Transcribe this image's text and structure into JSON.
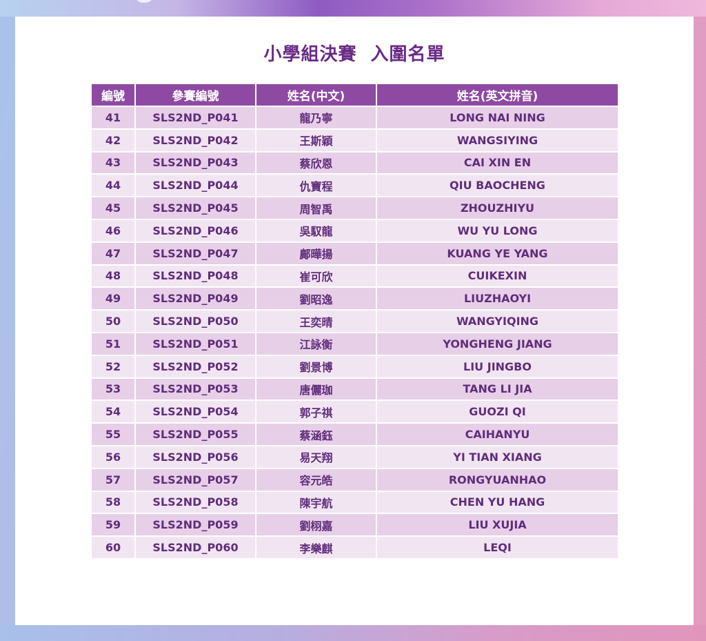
{
  "title": "小學組決賽  入圍名單",
  "colors": {
    "header_bg": "#8e4aa3",
    "row_odd": "#e7cfe8",
    "row_even": "#f2e5f2",
    "text": "#5f2d7a",
    "title": "#6a2a86"
  },
  "table": {
    "headers": [
      "編號",
      "參賽編號",
      "姓名(中文)",
      "姓名(英文拼音)"
    ],
    "rows": [
      {
        "num": "41",
        "code": "SLS2ND_P041",
        "name_cn": "龍乃寧",
        "name_en": "LONG NAI NING"
      },
      {
        "num": "42",
        "code": "SLS2ND_P042",
        "name_cn": "王斯穎",
        "name_en": "WANGSIYING"
      },
      {
        "num": "43",
        "code": "SLS2ND_P043",
        "name_cn": "蔡欣恩",
        "name_en": "CAI XIN EN"
      },
      {
        "num": "44",
        "code": "SLS2ND_P044",
        "name_cn": "仇寶程",
        "name_en": "QIU BAOCHENG"
      },
      {
        "num": "45",
        "code": "SLS2ND_P045",
        "name_cn": "周智禹",
        "name_en": "ZHOUZHIYU"
      },
      {
        "num": "46",
        "code": "SLS2ND_P046",
        "name_cn": "吳馭龍",
        "name_en": "WU YU LONG"
      },
      {
        "num": "47",
        "code": "SLS2ND_P047",
        "name_cn": "鄺曄揚",
        "name_en": "KUANG YE YANG"
      },
      {
        "num": "48",
        "code": "SLS2ND_P048",
        "name_cn": "崔可欣",
        "name_en": "CUIKEXIN"
      },
      {
        "num": "49",
        "code": "SLS2ND_P049",
        "name_cn": "劉昭逸",
        "name_en": "LIUZHAOYI"
      },
      {
        "num": "50",
        "code": "SLS2ND_P050",
        "name_cn": "王奕晴",
        "name_en": "WANGYIQING"
      },
      {
        "num": "51",
        "code": "SLS2ND_P051",
        "name_cn": "江詠衡",
        "name_en": "YONGHENG JIANG"
      },
      {
        "num": "52",
        "code": "SLS2ND_P052",
        "name_cn": "劉景博",
        "name_en": "LIU JINGBO"
      },
      {
        "num": "53",
        "code": "SLS2ND_P053",
        "name_cn": "唐儷珈",
        "name_en": "TANG LI JIA"
      },
      {
        "num": "54",
        "code": "SLS2ND_P054",
        "name_cn": "郭子祺",
        "name_en": "GUOZI QI"
      },
      {
        "num": "55",
        "code": "SLS2ND_P055",
        "name_cn": "蔡涵鈺",
        "name_en": "CAIHANYU"
      },
      {
        "num": "56",
        "code": "SLS2ND_P056",
        "name_cn": "易天翔",
        "name_en": "YI TIAN XIANG"
      },
      {
        "num": "57",
        "code": "SLS2ND_P057",
        "name_cn": "容元皓",
        "name_en": "RONGYUANHAO"
      },
      {
        "num": "58",
        "code": "SLS2ND_P058",
        "name_cn": "陳宇航",
        "name_en": "CHEN YU HANG"
      },
      {
        "num": "59",
        "code": "SLS2ND_P059",
        "name_cn": "劉栩嘉",
        "name_en": "LIU XUJIA"
      },
      {
        "num": "60",
        "code": "SLS2ND_P060",
        "name_cn": "李樂麒",
        "name_en": "LEQI"
      }
    ]
  }
}
